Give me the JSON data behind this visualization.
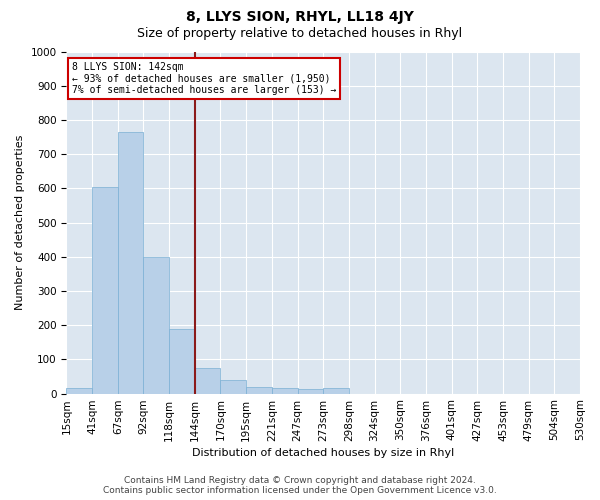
{
  "title": "8, LLYS SION, RHYL, LL18 4JY",
  "subtitle": "Size of property relative to detached houses in Rhyl",
  "xlabel": "Distribution of detached houses by size in Rhyl",
  "ylabel": "Number of detached properties",
  "bar_values": [
    15,
    605,
    765,
    400,
    190,
    75,
    40,
    18,
    15,
    12,
    15,
    0,
    0,
    0,
    0,
    0,
    0,
    0,
    0,
    0
  ],
  "bar_labels": [
    "15sqm",
    "41sqm",
    "67sqm",
    "92sqm",
    "118sqm",
    "144sqm",
    "170sqm",
    "195sqm",
    "221sqm",
    "247sqm",
    "273sqm",
    "298sqm",
    "324sqm",
    "350sqm",
    "376sqm",
    "401sqm",
    "427sqm",
    "453sqm",
    "479sqm",
    "504sqm",
    "530sqm"
  ],
  "bar_color": "#b8d0e8",
  "bar_edgecolor": "#7aafd4",
  "background_color": "#dce6f0",
  "ylim": [
    0,
    1000
  ],
  "yticks": [
    0,
    100,
    200,
    300,
    400,
    500,
    600,
    700,
    800,
    900,
    1000
  ],
  "vline_color": "#8b1a1a",
  "annotation_line1": "8 LLYS SION: 142sqm",
  "annotation_line2": "← 93% of detached houses are smaller (1,950)",
  "annotation_line3": "7% of semi-detached houses are larger (153) →",
  "annotation_box_color": "#ffffff",
  "annotation_box_edgecolor": "#cc0000",
  "footer_text": "Contains HM Land Registry data © Crown copyright and database right 2024.\nContains public sector information licensed under the Open Government Licence v3.0.",
  "title_fontsize": 10,
  "subtitle_fontsize": 9,
  "label_fontsize": 8,
  "tick_fontsize": 7.5,
  "footer_fontsize": 6.5
}
